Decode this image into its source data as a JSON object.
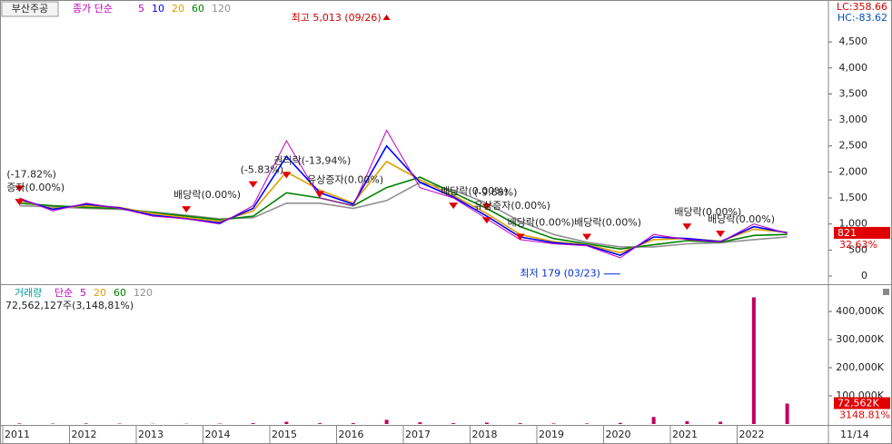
{
  "chart_data": {
    "type": "line",
    "title": "부산주공",
    "price_legend_label": "종가 단순",
    "categories": [
      "2011",
      null,
      "2012",
      null,
      "2013",
      null,
      "2014",
      null,
      "2015",
      null,
      "2016",
      null,
      "2017",
      null,
      "2018",
      null,
      "2019",
      null,
      "2020",
      null,
      "2021",
      null,
      "2022",
      null
    ],
    "end_date_label": "11/14",
    "series": [
      {
        "name": "5",
        "color": "#c000c0",
        "values": [
          1500,
          1250,
          1400,
          1300,
          1150,
          1100,
          1000,
          1350,
          2600,
          1500,
          1350,
          2800,
          1700,
          1500,
          1100,
          700,
          620,
          580,
          350,
          800,
          700,
          650,
          1000,
          821
        ]
      },
      {
        "name": "10",
        "color": "#0000ff",
        "values": [
          1480,
          1280,
          1380,
          1310,
          1170,
          1100,
          1020,
          1300,
          2300,
          1600,
          1380,
          2500,
          1800,
          1520,
          1150,
          750,
          640,
          590,
          400,
          750,
          720,
          660,
          950,
          830
        ]
      },
      {
        "name": "20",
        "color": "#e0a000",
        "values": [
          1450,
          1300,
          1350,
          1320,
          1200,
          1120,
          1050,
          1250,
          2000,
          1650,
          1400,
          2200,
          1850,
          1550,
          1200,
          800,
          660,
          600,
          450,
          700,
          720,
          670,
          900,
          840
        ]
      },
      {
        "name": "60",
        "color": "#008000",
        "values": [
          1400,
          1350,
          1320,
          1300,
          1220,
          1150,
          1080,
          1150,
          1600,
          1500,
          1350,
          1700,
          1900,
          1600,
          1300,
          950,
          720,
          620,
          520,
          600,
          680,
          650,
          780,
          800
        ]
      },
      {
        "name": "120",
        "color": "#909090",
        "values": [
          1350,
          1330,
          1300,
          1280,
          1230,
          1170,
          1100,
          1120,
          1400,
          1400,
          1300,
          1450,
          1800,
          1650,
          1400,
          1050,
          800,
          650,
          560,
          560,
          620,
          640,
          700,
          750
        ]
      }
    ],
    "ylim": [
      0,
      5270
    ],
    "yticks": [
      0,
      500,
      {
        "value": 1000,
        "label": "1,000"
      },
      {
        "value": 1500,
        "label": "1,500"
      },
      {
        "value": 2000,
        "label": "2,000"
      },
      {
        "value": 2500,
        "label": "2,500"
      },
      {
        "value": 3000,
        "label": "3,000"
      },
      {
        "value": 3500,
        "label": "3,500"
      },
      {
        "value": 4000,
        "label": "4,000"
      },
      {
        "value": 4500,
        "label": "4,500"
      }
    ],
    "lc_label": "LC:358.66",
    "hc_label": "HC:-83.62",
    "last_price": 821,
    "last_change_label": "32.63%",
    "high": {
      "index": 11,
      "value": 5013,
      "label": "최고 5,013 (09/26)"
    },
    "low": {
      "index": 18,
      "value": 179,
      "label": "최저 179 (03/23)"
    },
    "annotations": [
      {
        "index": 0,
        "value": 1950,
        "label": "(-17.82%)"
      },
      {
        "index": 0,
        "value": 1690,
        "label": "증자(0.00%)"
      },
      {
        "index": 5,
        "value": 1550,
        "label": "배당락(0.00%)"
      },
      {
        "index": 7,
        "value": 2030,
        "label": "(-5.83%)"
      },
      {
        "index": 8,
        "value": 2210,
        "label": "권리락(-13,94%)"
      },
      {
        "index": 9,
        "value": 1840,
        "label": "유상증자(0.00%)"
      },
      {
        "index": 13,
        "value": 1620,
        "label": "배당락(0.00%)"
      },
      {
        "index": 14,
        "value": 1600,
        "label": "(-9.68%)"
      },
      {
        "index": 14,
        "value": 1340,
        "label": "유상증자(0.00%)"
      },
      {
        "index": 15,
        "value": 1020,
        "label": "배당락(0.00%)"
      },
      {
        "index": 17,
        "value": 1020,
        "label": "배당락(0.00%)"
      },
      {
        "index": 20,
        "value": 1220,
        "label": "배당락(0.00%)"
      },
      {
        "index": 21,
        "value": 1080,
        "label": "배당락(0.00%)"
      }
    ],
    "volume": {
      "title": "거래량",
      "legend_label": "단순",
      "legend": [
        {
          "name": "5",
          "color": "#c000c0"
        },
        {
          "name": "20",
          "color": "#e0a000"
        },
        {
          "name": "60",
          "color": "#008000"
        },
        {
          "name": "120",
          "color": "#909090"
        }
      ],
      "summary": "72,562,127주(3,148,81%)",
      "color": "#c00060",
      "values": [
        2000,
        1500,
        2000,
        1500,
        1000,
        1000,
        1500,
        3000,
        8000,
        3000,
        3000,
        15000,
        6000,
        3000,
        5000,
        3000,
        2000,
        2000,
        4000,
        25000,
        10000,
        8000,
        450000,
        72562
      ],
      "ylim": [
        0,
        467700
      ],
      "yticks": [
        {
          "value": 100000,
          "label": "100,000K"
        },
        {
          "value": 200000,
          "label": "200,000K"
        },
        {
          "value": 300000,
          "label": "300,000K"
        },
        {
          "value": 400000,
          "label": "400,000K"
        }
      ],
      "last_label": "72,562K",
      "last_change_label": "3148.81%"
    }
  }
}
